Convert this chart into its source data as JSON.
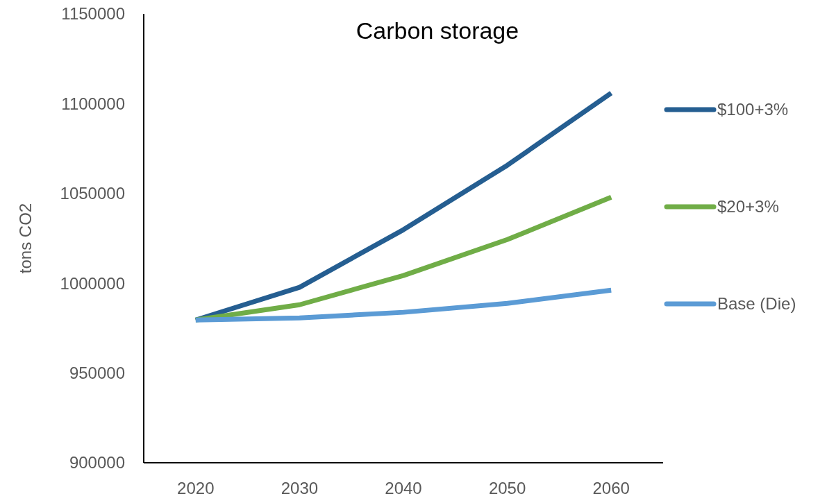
{
  "chart_data": {
    "type": "line",
    "title": "Carbon storage",
    "ylabel": "tons CO2",
    "categories": [
      "2020",
      "2030",
      "2040",
      "2050",
      "2060"
    ],
    "series": [
      {
        "name": "$100+3%",
        "color": "#255e91",
        "values": [
          979500,
          997700,
          1029800,
          1065700,
          1105900
        ]
      },
      {
        "name": "$20+3%",
        "color": "#70ad47",
        "values": [
          979500,
          988000,
          1004300,
          1024300,
          1047900
        ]
      },
      {
        "name": "Base (Die)",
        "color": "#5b9bd5",
        "values": [
          979500,
          980700,
          983800,
          988800,
          996100
        ]
      }
    ],
    "ylim": [
      900000,
      1150000
    ],
    "yticks": [
      900000,
      950000,
      1000000,
      1050000,
      1100000,
      1150000
    ],
    "grid": false,
    "legend": "right",
    "marker": "none",
    "line_style": "solid"
  }
}
